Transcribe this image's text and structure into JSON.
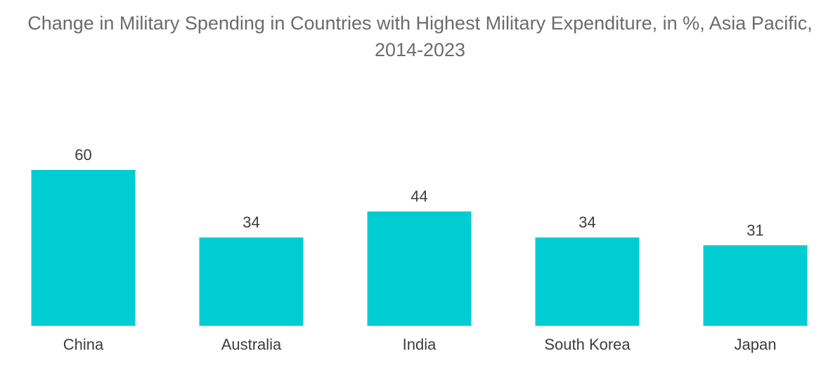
{
  "chart_data": {
    "type": "bar",
    "title": "Change in Military Spending in Countries with Highest Military Expenditure, in %, Asia Pacific, 2014-2023",
    "categories": [
      "China",
      "Australia",
      "India",
      "South Korea",
      "Japan"
    ],
    "values": [
      60,
      34,
      44,
      34,
      31
    ],
    "data_labels": [
      "60",
      "34",
      "44",
      "34",
      "31"
    ],
    "xlabel": "",
    "ylabel": "",
    "ylim": [
      0,
      60
    ],
    "grid": false,
    "legend": "none",
    "bar_color": "#00cdd1"
  }
}
